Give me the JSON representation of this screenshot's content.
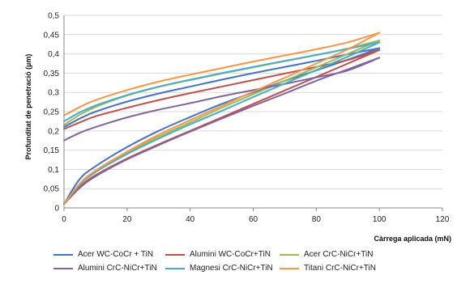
{
  "chart_data": {
    "type": "line",
    "title": "",
    "xlabel": "Càrrega aplicada (mN)",
    "ylabel": "Profunditat de penetració (µm)",
    "xlim": [
      0,
      120
    ],
    "ylim": [
      0,
      0.5
    ],
    "xticks": [
      "0",
      "20",
      "40",
      "60",
      "80",
      "100",
      "120"
    ],
    "yticks": [
      "0",
      "0,05",
      "0,1",
      "0,15",
      "0,2",
      "0,25",
      "0,3",
      "0,35",
      "0,4",
      "0,45",
      "0,5"
    ],
    "grid": "horizontal",
    "legend_position": "bottom",
    "series": [
      {
        "name": "Acer WC-CoCr + TiN",
        "color": "#4472C4",
        "loading": {
          "x": [
            0,
            5,
            10,
            20,
            30,
            40,
            50,
            60,
            70,
            80,
            90,
            100
          ],
          "y": [
            0.01,
            0.075,
            0.108,
            0.158,
            0.2,
            0.236,
            0.27,
            0.3,
            0.33,
            0.357,
            0.385,
            0.415
          ]
        },
        "unloading": {
          "x": [
            0,
            5,
            10,
            20,
            30,
            40,
            50,
            60,
            70,
            80,
            90,
            100
          ],
          "y": [
            0.21,
            0.232,
            0.25,
            0.276,
            0.297,
            0.315,
            0.333,
            0.35,
            0.366,
            0.382,
            0.399,
            0.415
          ]
        }
      },
      {
        "name": "Alumini WC-CoCr+TiN",
        "color": "#C0504D",
        "loading": {
          "x": [
            0,
            5,
            10,
            20,
            30,
            40,
            50,
            60,
            70,
            80,
            90,
            100
          ],
          "y": [
            0.01,
            0.055,
            0.085,
            0.128,
            0.165,
            0.2,
            0.235,
            0.27,
            0.305,
            0.34,
            0.375,
            0.41
          ]
        },
        "unloading": {
          "x": [
            0,
            5,
            10,
            20,
            30,
            40,
            50,
            60,
            70,
            80,
            90,
            100
          ],
          "y": [
            0.205,
            0.222,
            0.238,
            0.26,
            0.28,
            0.298,
            0.315,
            0.332,
            0.349,
            0.366,
            0.384,
            0.41
          ]
        }
      },
      {
        "name": "Acer CrC-NiCr+TiN",
        "color": "#9BBB59",
        "loading": {
          "x": [
            0,
            5,
            10,
            20,
            30,
            40,
            50,
            60,
            70,
            80,
            90,
            100
          ],
          "y": [
            0.01,
            0.062,
            0.095,
            0.143,
            0.185,
            0.222,
            0.26,
            0.295,
            0.33,
            0.365,
            0.4,
            0.435
          ]
        },
        "unloading": {
          "x": [
            0,
            5,
            10,
            20,
            30,
            40,
            50,
            60,
            70,
            80,
            90,
            100
          ],
          "y": [
            0.215,
            0.242,
            0.262,
            0.292,
            0.314,
            0.332,
            0.349,
            0.365,
            0.381,
            0.397,
            0.414,
            0.435
          ]
        }
      },
      {
        "name": "Alumini CrC-NiCr+TiN",
        "color": "#8064A2",
        "loading": {
          "x": [
            0,
            5,
            10,
            20,
            30,
            40,
            50,
            60,
            70,
            80,
            90,
            100
          ],
          "y": [
            0.01,
            0.052,
            0.082,
            0.126,
            0.163,
            0.198,
            0.232,
            0.265,
            0.297,
            0.33,
            0.36,
            0.39
          ]
        },
        "unloading": {
          "x": [
            0,
            5,
            10,
            20,
            30,
            40,
            50,
            60,
            70,
            80,
            90,
            100
          ],
          "y": [
            0.175,
            0.195,
            0.21,
            0.235,
            0.255,
            0.272,
            0.29,
            0.306,
            0.322,
            0.339,
            0.357,
            0.39
          ]
        }
      },
      {
        "name": "Magnesi CrC-NiCr+TiN",
        "color": "#4BACC6",
        "loading": {
          "x": [
            0,
            5,
            10,
            20,
            30,
            40,
            50,
            60,
            70,
            80,
            90,
            100
          ],
          "y": [
            0.01,
            0.06,
            0.093,
            0.14,
            0.18,
            0.217,
            0.252,
            0.288,
            0.323,
            0.358,
            0.393,
            0.43
          ]
        },
        "unloading": {
          "x": [
            0,
            5,
            10,
            20,
            30,
            40,
            50,
            60,
            70,
            80,
            90,
            100
          ],
          "y": [
            0.225,
            0.248,
            0.266,
            0.293,
            0.315,
            0.333,
            0.35,
            0.366,
            0.382,
            0.397,
            0.413,
            0.43
          ]
        }
      },
      {
        "name": "Titani CrC-NiCr+TiN",
        "color": "#F79646",
        "loading": {
          "x": [
            0,
            5,
            10,
            20,
            30,
            40,
            50,
            60,
            70,
            80,
            90,
            100
          ],
          "y": [
            0.01,
            0.063,
            0.097,
            0.146,
            0.19,
            0.228,
            0.265,
            0.302,
            0.338,
            0.375,
            0.412,
            0.455
          ]
        },
        "unloading": {
          "x": [
            0,
            5,
            10,
            20,
            30,
            40,
            50,
            60,
            70,
            80,
            90,
            100
          ],
          "y": [
            0.24,
            0.262,
            0.28,
            0.306,
            0.328,
            0.346,
            0.363,
            0.38,
            0.396,
            0.412,
            0.43,
            0.455
          ]
        }
      }
    ]
  }
}
